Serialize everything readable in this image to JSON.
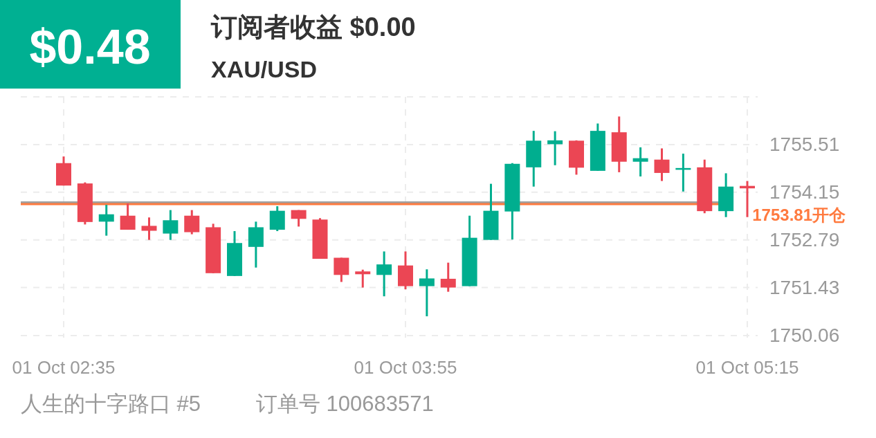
{
  "chart_data": {
    "type": "candlestick",
    "title": "订阅者收益 $0.00",
    "subtitle": "XAU/USD",
    "annotations": [
      "$0.48",
      "人生的十字路口 #5",
      "订单号 100683571"
    ],
    "categories": [
      "01 Oct  02:35",
      null,
      null,
      null,
      null,
      null,
      null,
      null,
      null,
      null,
      null,
      null,
      null,
      null,
      null,
      null,
      "01 Oct  03:55",
      null,
      null,
      null,
      null,
      null,
      null,
      null,
      null,
      null,
      null,
      null,
      null,
      null,
      null,
      null,
      "01 Oct  05:15"
    ],
    "ohlc": [
      [
        1754.98,
        1755.17,
        1754.34,
        1754.34
      ],
      [
        1754.4,
        1754.43,
        1753.23,
        1753.3
      ],
      [
        1753.31,
        1753.79,
        1752.91,
        1753.52
      ],
      [
        1753.48,
        1753.83,
        1753.08,
        1753.08
      ],
      [
        1753.19,
        1753.43,
        1752.79,
        1753.05
      ],
      [
        1752.97,
        1753.64,
        1752.79,
        1753.35
      ],
      [
        1753.48,
        1753.64,
        1752.95,
        1753.01
      ],
      [
        1753.15,
        1753.25,
        1751.84,
        1751.84
      ],
      [
        1751.76,
        1753.04,
        1751.76,
        1752.7
      ],
      [
        1752.59,
        1753.31,
        1752.0,
        1753.15
      ],
      [
        1753.08,
        1753.75,
        1753.04,
        1753.62
      ],
      [
        1753.64,
        1753.64,
        1753.17,
        1753.39
      ],
      [
        1753.37,
        1753.41,
        1752.25,
        1752.25
      ],
      [
        1752.28,
        1752.28,
        1751.59,
        1751.79
      ],
      [
        1751.89,
        1751.94,
        1751.43,
        1751.81
      ],
      [
        1751.79,
        1752.46,
        1751.18,
        1752.09
      ],
      [
        1752.06,
        1752.46,
        1751.38,
        1751.47
      ],
      [
        1751.47,
        1751.95,
        1750.61,
        1751.69
      ],
      [
        1751.68,
        1752.14,
        1751.31,
        1751.43
      ],
      [
        1751.47,
        1753.48,
        1751.47,
        1752.85
      ],
      [
        1752.79,
        1754.39,
        1752.79,
        1753.62
      ],
      [
        1753.6,
        1754.98,
        1752.8,
        1754.96
      ],
      [
        1754.86,
        1755.9,
        1754.31,
        1755.62
      ],
      [
        1755.52,
        1755.89,
        1754.92,
        1755.63
      ],
      [
        1755.62,
        1755.63,
        1754.65,
        1754.85
      ],
      [
        1754.76,
        1756.11,
        1754.76,
        1755.9
      ],
      [
        1755.86,
        1756.31,
        1754.72,
        1755.02
      ],
      [
        1755.02,
        1755.43,
        1754.6,
        1755.12
      ],
      [
        1755.08,
        1755.4,
        1754.47,
        1754.7
      ],
      [
        1754.79,
        1755.25,
        1754.17,
        1754.84
      ],
      [
        1754.86,
        1755.08,
        1753.55,
        1753.61
      ],
      [
        1753.61,
        1754.69,
        1753.44,
        1754.31
      ],
      [
        1754.33,
        1754.47,
        1753.44,
        1754.26
      ]
    ],
    "ylim": [
      1750.0,
      1756.87
    ],
    "yticks": [
      1750.06,
      1751.43,
      1752.79,
      1754.15,
      1755.51,
      {
        "value": 1756.87,
        "label": null
      }
    ],
    "ref_lines": [
      {
        "axis": "y",
        "value": 1753.86,
        "color": "#a0a0a0"
      },
      {
        "axis": "y",
        "value": 1753.81,
        "label": "1753.81开仓",
        "color": "#ff7a3f"
      }
    ],
    "grid": true
  }
}
